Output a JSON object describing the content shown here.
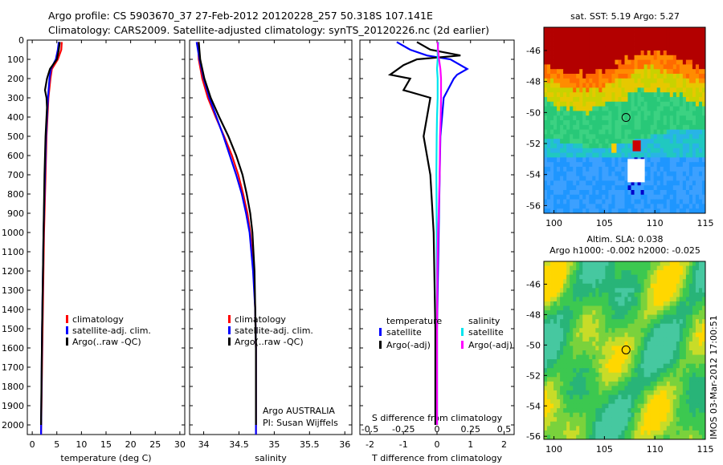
{
  "header": {
    "line1": "Argo profile: CS 5903670_37 27-Feb-2012 20120228_257 50.318S 107.141E",
    "line2": "Climatology: CARS2009. Satellite-adjusted climatology: synTS_20120226.nc (2d earlier)"
  },
  "colors": {
    "climatology": "#ff0000",
    "satellite": "#0000ff",
    "argo": "#000000",
    "salinity_satellite": "#00e5ee",
    "salinity_argo": "#ff00ff"
  },
  "chart_data": [
    {
      "type": "line",
      "id": "temperature",
      "xlabel": "temperature (deg C)",
      "ylabel": "",
      "xlim": [
        -1,
        31
      ],
      "ylim": [
        2050,
        0
      ],
      "xticks": [
        0,
        5,
        10,
        15,
        20,
        25,
        30
      ],
      "yticks": [
        0,
        100,
        200,
        300,
        400,
        500,
        600,
        700,
        800,
        900,
        1000,
        1100,
        1200,
        1300,
        1400,
        1500,
        1600,
        1700,
        1800,
        1900,
        2000
      ],
      "legend": {
        "position": "lower-middle",
        "entries": [
          "climatology",
          "satellite-adj. clim.",
          "Argo(..raw -QC)"
        ]
      },
      "series": [
        {
          "name": "climatology",
          "color": "#ff0000",
          "depth": [
            10,
            50,
            100,
            150,
            200,
            300,
            400,
            500,
            700,
            1000,
            1500,
            2050
          ],
          "values": [
            6.0,
            5.9,
            5.2,
            4.0,
            3.7,
            3.3,
            3.1,
            2.9,
            2.7,
            2.4,
            2.1,
            1.8
          ]
        },
        {
          "name": "satellite-adj. clim.",
          "color": "#0000ff",
          "depth": [
            10,
            50,
            100,
            150,
            200,
            300,
            400,
            500,
            700,
            1000,
            1500,
            2050
          ],
          "values": [
            5.4,
            5.2,
            4.8,
            3.8,
            3.5,
            3.2,
            3.0,
            2.8,
            2.6,
            2.3,
            2.0,
            1.8
          ]
        },
        {
          "name": "Argo(..raw -QC)",
          "color": "#000000",
          "depth": [
            10,
            50,
            100,
            150,
            200,
            260,
            300,
            350,
            400,
            500,
            700,
            1000,
            1500,
            2000
          ],
          "values": [
            5.6,
            5.4,
            5.0,
            3.6,
            3.0,
            2.6,
            2.9,
            3.0,
            2.9,
            2.7,
            2.5,
            2.3,
            2.0,
            1.8
          ]
        }
      ]
    },
    {
      "type": "line",
      "id": "salinity",
      "xlabel": "salinity",
      "ylabel": "",
      "xlim": [
        33.8,
        36.1
      ],
      "ylim": [
        2050,
        0
      ],
      "xticks": [
        34,
        34.5,
        35,
        35.5,
        36
      ],
      "legend": {
        "position": "lower-middle",
        "entries": [
          "climatology",
          "satellite-adj. clim.",
          "Argo(..raw -QC)"
        ]
      },
      "annotations": [
        "Argo AUSTRALIA",
        "PI: Susan Wijffels"
      ],
      "series": [
        {
          "name": "climatology",
          "color": "#ff0000",
          "depth": [
            10,
            100,
            200,
            300,
            400,
            500,
            600,
            700,
            800,
            900,
            1000,
            1200,
            1400,
            1600,
            2050
          ],
          "values": [
            33.92,
            33.93,
            33.98,
            34.06,
            34.17,
            34.29,
            34.4,
            34.49,
            34.56,
            34.62,
            34.66,
            34.71,
            34.73,
            34.74,
            34.74
          ]
        },
        {
          "name": "satellite-adj. clim.",
          "color": "#0000ff",
          "depth": [
            10,
            100,
            200,
            300,
            400,
            500,
            600,
            700,
            800,
            900,
            1000,
            1200,
            1400,
            1600,
            2050
          ],
          "values": [
            33.9,
            33.94,
            34.0,
            34.08,
            34.18,
            34.28,
            34.37,
            34.46,
            34.54,
            34.6,
            34.65,
            34.7,
            34.73,
            34.74,
            34.74
          ]
        },
        {
          "name": "Argo(..raw -QC)",
          "color": "#000000",
          "depth": [
            10,
            100,
            200,
            300,
            400,
            500,
            600,
            700,
            800,
            900,
            1000,
            1200,
            1400,
            1600,
            2000
          ],
          "values": [
            33.93,
            33.95,
            34.01,
            34.1,
            34.22,
            34.35,
            34.46,
            34.55,
            34.61,
            34.66,
            34.69,
            34.72,
            34.73,
            34.74,
            34.74
          ]
        }
      ]
    },
    {
      "type": "line",
      "id": "difference",
      "xlabel": "T difference from climatology",
      "x2label": "S difference from climatology",
      "xlim": [
        -2.3,
        2.3
      ],
      "ylim": [
        2050,
        0
      ],
      "xticks": [
        -2,
        -1,
        0,
        1,
        2
      ],
      "x2ticks": [
        -0.5,
        -0.25,
        0,
        0.25,
        0.5
      ],
      "x2tick_labels": [
        "-0.5",
        "-0.25",
        "0",
        "0.25",
        "0.5"
      ],
      "legend": {
        "position": "lower-middle",
        "temperature_label": "temperature",
        "salinity_label": "salinity",
        "temperature_entries": [
          "satellite",
          "Argo(-adj)"
        ],
        "salinity_entries": [
          "satellite",
          "Argo(-adj)"
        ]
      },
      "series": [
        {
          "name": "temperature satellite",
          "color": "#0000ff",
          "depth": [
            10,
            50,
            80,
            100,
            150,
            180,
            200,
            300,
            500,
            1000,
            1500,
            2000
          ],
          "values": [
            -1.2,
            -0.8,
            -0.3,
            0.4,
            0.9,
            0.6,
            0.5,
            0.2,
            0.1,
            0.05,
            0.0,
            0.0
          ]
        },
        {
          "name": "temperature Argo(-adj)",
          "color": "#000000",
          "depth": [
            10,
            50,
            80,
            100,
            130,
            180,
            200,
            260,
            300,
            400,
            500,
            700,
            1000,
            1500,
            2000
          ],
          "values": [
            -0.6,
            -0.2,
            0.7,
            -0.6,
            -1.0,
            -1.4,
            -0.8,
            -1.0,
            -0.2,
            -0.3,
            -0.4,
            -0.2,
            -0.1,
            -0.05,
            -0.05
          ]
        },
        {
          "name": "salinity satellite",
          "color": "#00e5ee",
          "depth": [
            10,
            50,
            100,
            150,
            200,
            300,
            400,
            500,
            700,
            1000,
            1500,
            2000
          ],
          "values": [
            0.04,
            0.02,
            0.02,
            0.0,
            0.02,
            0.02,
            0.0,
            -0.01,
            -0.02,
            -0.01,
            0.0,
            0.0
          ]
        },
        {
          "name": "salinity Argo(-adj)",
          "color": "#ff00ff",
          "depth": [
            10,
            50,
            100,
            150,
            200,
            300,
            400,
            500,
            700,
            900,
            1000,
            1200,
            1500,
            2000
          ],
          "values": [
            0.02,
            0.03,
            0.06,
            0.1,
            0.12,
            0.12,
            0.11,
            0.09,
            0.08,
            0.05,
            0.03,
            0.01,
            0.0,
            0.0
          ]
        }
      ]
    },
    {
      "type": "heatmap",
      "id": "sst-map",
      "title": "sat. SST: 5.19 Argo: 5.27",
      "xlim": [
        99,
        115
      ],
      "ylim": [
        -56.5,
        -44.5
      ],
      "xticks": [
        100,
        105,
        110,
        115
      ],
      "yticks": [
        -46,
        -48,
        -50,
        -52,
        -54,
        -56
      ],
      "marker": {
        "lon": 107.14,
        "lat": -50.32
      }
    },
    {
      "type": "heatmap",
      "id": "sla-map",
      "title": "Altim. SLA: 0.038",
      "subtitle": "Argo h1000: -0.002 h2000: -0.025",
      "xlim": [
        99,
        115
      ],
      "ylim": [
        -56.2,
        -44.5
      ],
      "xticks": [
        100,
        105,
        110,
        115
      ],
      "yticks": [
        -46,
        -48,
        -50,
        -52,
        -54,
        -56
      ],
      "marker": {
        "lon": 107.14,
        "lat": -50.32
      }
    }
  ],
  "side_text": "IMOS 03-Mar-2012 17:00:51"
}
